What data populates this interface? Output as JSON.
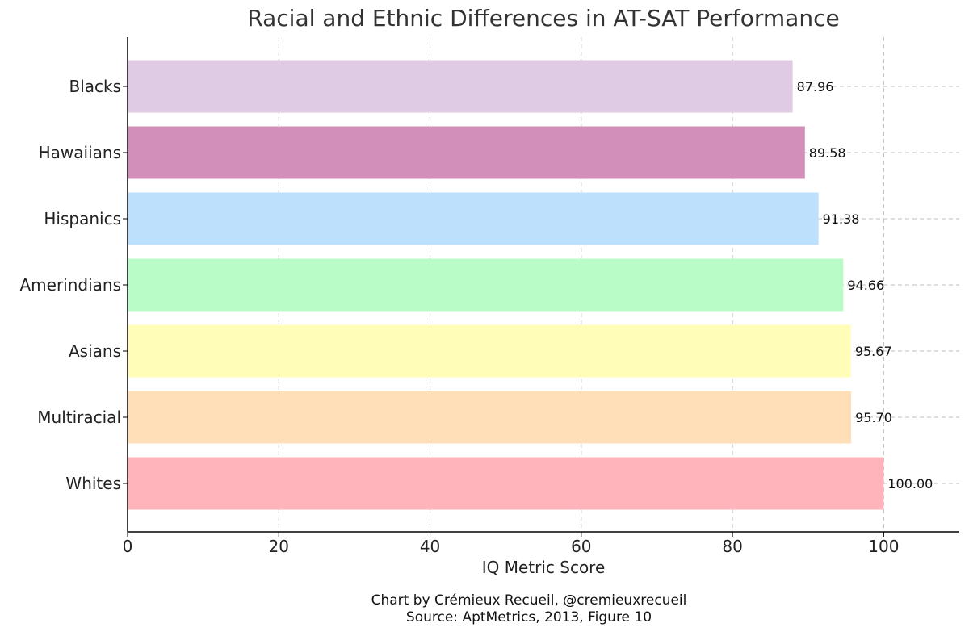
{
  "chart_data": {
    "type": "bar",
    "orientation": "horizontal",
    "title": "Racial and Ethnic Differences in AT-SAT Performance",
    "xlabel": "IQ Metric Score",
    "ylabel": "",
    "xlim": [
      0,
      110
    ],
    "xticks": [
      0,
      20,
      40,
      60,
      80,
      100
    ],
    "grid": true,
    "categories": [
      "Blacks",
      "Hawaiians",
      "Hispanics",
      "Amerindians",
      "Asians",
      "Multiracial",
      "Whites"
    ],
    "values": [
      87.96,
      89.58,
      91.38,
      94.66,
      95.67,
      95.7,
      100.0
    ],
    "value_labels": [
      "87.96",
      "89.58",
      "91.38",
      "94.66",
      "95.67",
      "95.70",
      "100.00"
    ],
    "colors": [
      "#dfcbe3",
      "#d18fba",
      "#bde0fc",
      "#b9fcc7",
      "#fffdb8",
      "#ffdfb8",
      "#ffb3ba"
    ]
  },
  "credits": {
    "line1": "Chart by Crémieux Recueil, @cremieuxrecueil",
    "line2": "Source: AptMetrics, 2013, Figure 10"
  }
}
